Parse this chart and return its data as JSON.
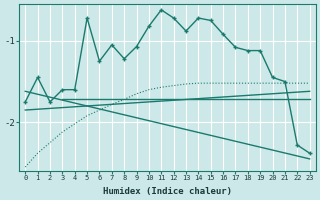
{
  "xlabel": "Humidex (Indice chaleur)",
  "bg_color": "#cde8e8",
  "grid_color": "#b8d8d8",
  "line_color": "#1a7a6e",
  "x_ticks": [
    0,
    1,
    2,
    3,
    4,
    5,
    6,
    7,
    8,
    9,
    10,
    11,
    12,
    13,
    14,
    15,
    16,
    17,
    18,
    19,
    20,
    21,
    22,
    23
  ],
  "ylim": [
    -2.6,
    -0.55
  ],
  "yticks": [
    -2,
    -1
  ],
  "series": [
    {
      "x": [
        0,
        1,
        2,
        3,
        4,
        5,
        6,
        7,
        8,
        9,
        10,
        11,
        12,
        13,
        14,
        15,
        16,
        17,
        18,
        19,
        20,
        21,
        22,
        23
      ],
      "y": [
        -1.75,
        -1.45,
        -1.75,
        -1.6,
        -1.6,
        -0.72,
        -1.25,
        -1.05,
        -1.22,
        -1.07,
        -0.82,
        -0.62,
        -0.72,
        -0.88,
        -0.72,
        -0.75,
        -0.92,
        -1.08,
        -1.12,
        -1.12,
        -1.45,
        -1.5,
        -2.28,
        -2.38
      ],
      "marker": "+",
      "linewidth": 1.0,
      "linestyle": "-"
    },
    {
      "x": [
        3,
        4,
        5,
        6,
        7,
        8,
        9,
        10,
        11,
        12,
        13,
        14,
        15,
        16,
        17,
        18,
        19,
        20,
        21,
        22,
        23
      ],
      "y": [
        -1.72,
        -1.72,
        -1.72,
        -1.72,
        -1.72,
        -1.72,
        -1.72,
        -1.72,
        -1.72,
        -1.72,
        -1.72,
        -1.72,
        -1.72,
        -1.72,
        -1.72,
        -1.72,
        -1.72,
        -1.72,
        -1.72,
        -1.72,
        -1.72
      ],
      "marker": null,
      "linewidth": 1.0,
      "linestyle": "-"
    },
    {
      "x": [
        0,
        23
      ],
      "y": [
        -1.85,
        -1.62
      ],
      "marker": null,
      "linewidth": 1.0,
      "linestyle": "-"
    },
    {
      "x": [
        0,
        23
      ],
      "y": [
        -1.62,
        -2.45
      ],
      "marker": null,
      "linewidth": 1.0,
      "linestyle": "-"
    },
    {
      "x": [
        0,
        1,
        2,
        3,
        4,
        5,
        6,
        7,
        8,
        9,
        10,
        11,
        12,
        13,
        14,
        15,
        16,
        17,
        18,
        19,
        20,
        21,
        22,
        23
      ],
      "y": [
        -2.55,
        -2.38,
        -2.25,
        -2.12,
        -2.02,
        -1.92,
        -1.85,
        -1.78,
        -1.72,
        -1.65,
        -1.6,
        -1.57,
        -1.55,
        -1.53,
        -1.52,
        -1.52,
        -1.52,
        -1.52,
        -1.52,
        -1.52,
        -1.52,
        -1.52,
        -1.52,
        -1.52
      ],
      "marker": null,
      "linewidth": 0.8,
      "linestyle": ":"
    }
  ]
}
